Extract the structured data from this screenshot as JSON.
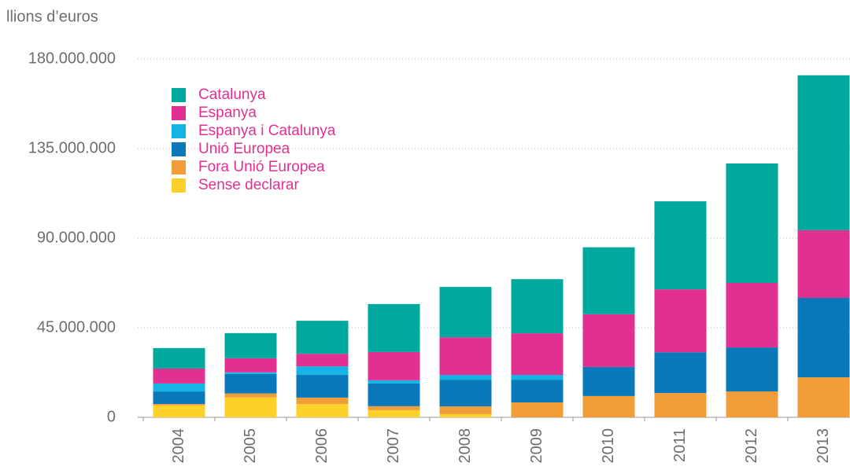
{
  "chart_data": {
    "type": "stacked_bar",
    "title": "llions d’euros",
    "categories": [
      "2004",
      "2005",
      "2006",
      "2007",
      "2008",
      "2009",
      "2010",
      "2011",
      "2012",
      "2013"
    ],
    "series": [
      {
        "name": "Sense declarar",
        "color": "#fcd12a",
        "values": [
          6000000,
          10000000,
          6700000,
          3600000,
          1600000,
          0,
          0,
          0,
          0,
          0
        ]
      },
      {
        "name": "Fora Unió Europea",
        "color": "#f19e38",
        "values": [
          700000,
          2000000,
          3200000,
          2000000,
          3900000,
          7500000,
          10700000,
          12200000,
          13000000,
          20100000
        ]
      },
      {
        "name": "Unió Europea",
        "color": "#0a79b9",
        "values": [
          6300000,
          9800000,
          11400000,
          11400000,
          13400000,
          11400000,
          14600000,
          20500000,
          22100000,
          39900000
        ]
      },
      {
        "name": "Espanya i Catalunya",
        "color": "#15b4e5",
        "values": [
          4000000,
          800000,
          4300000,
          1600000,
          2400000,
          2400000,
          0,
          0,
          0,
          0
        ]
      },
      {
        "name": "Espanya",
        "color": "#e23092",
        "values": [
          7500000,
          7100000,
          6300000,
          14200000,
          18900000,
          20900000,
          26500000,
          31600000,
          32400000,
          34000000
        ]
      },
      {
        "name": "Catalunya",
        "color": "#00a99d",
        "values": [
          10300000,
          12600000,
          16600000,
          24100000,
          25300000,
          27200000,
          33600000,
          44200000,
          60000000,
          77800000
        ]
      }
    ],
    "ylim": [
      0,
      180000000
    ],
    "yticks": [
      {
        "value": 0,
        "label": "0"
      },
      {
        "value": 45000000,
        "label": "45.000.000"
      },
      {
        "value": 90000000,
        "label": "90.000.000"
      },
      {
        "value": 135000000,
        "label": "135.000.000"
      },
      {
        "value": 180000000,
        "label": "180.000.000"
      }
    ],
    "grid": true,
    "legend": "upper-left"
  }
}
